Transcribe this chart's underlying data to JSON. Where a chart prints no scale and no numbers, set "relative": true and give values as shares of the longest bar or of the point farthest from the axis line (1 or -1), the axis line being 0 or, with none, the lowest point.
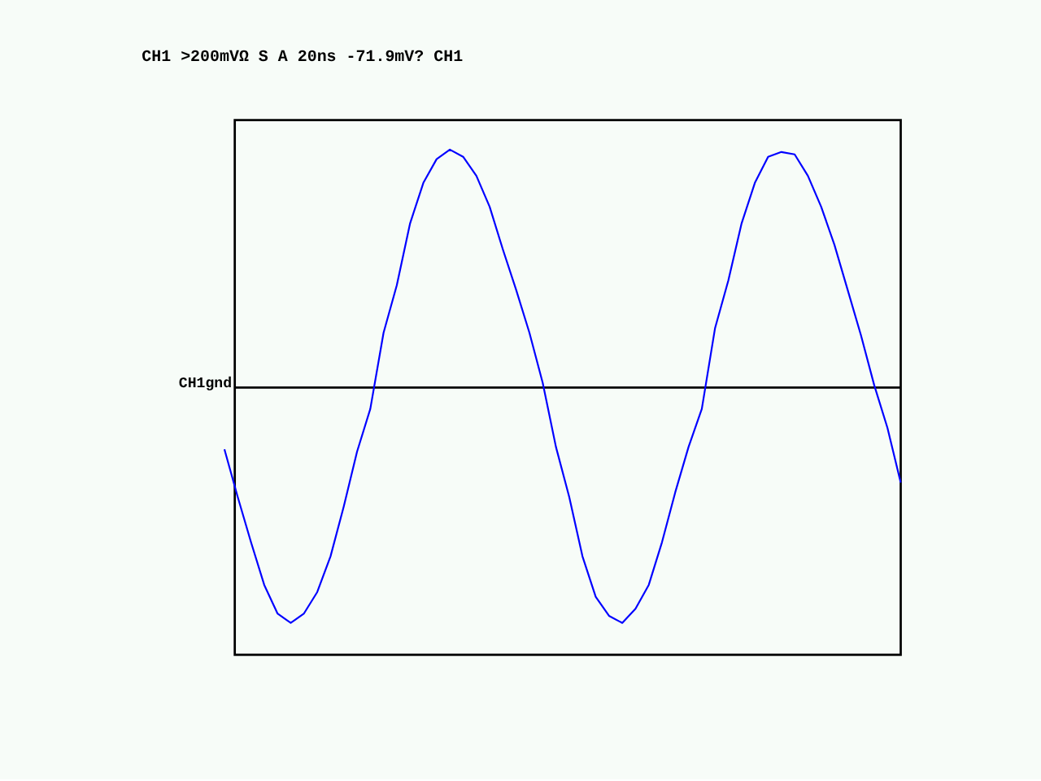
{
  "chart_data": {
    "type": "line",
    "relative": true,
    "title": "CH1 >200mVΩ S      A  20ns -71.9mV?  CH1",
    "annotations": [
      "CH1gnd"
    ],
    "categories": [
      null,
      null,
      null,
      null,
      null,
      null,
      null,
      null,
      null,
      null,
      null,
      null,
      null,
      null,
      null,
      null,
      null,
      null,
      null,
      null,
      null,
      null,
      null,
      null,
      null,
      null,
      null,
      null,
      null,
      null,
      null,
      null,
      null,
      null,
      null,
      null,
      null,
      null,
      null,
      null,
      null,
      null,
      null,
      null,
      null,
      null,
      null,
      null,
      null,
      null,
      null,
      null
    ],
    "series": [
      {
        "color": "#0000ff",
        "values": [
          -0.26,
          -0.46,
          -0.65,
          -0.83,
          -0.95,
          -0.99,
          -0.95,
          -0.86,
          -0.71,
          -0.5,
          -0.27,
          -0.09,
          0.23,
          0.43,
          0.69,
          0.86,
          0.96,
          1.0,
          0.97,
          0.89,
          0.76,
          0.58,
          0.41,
          0.23,
          0.02,
          -0.25,
          -0.46,
          -0.71,
          -0.88,
          -0.96,
          -0.99,
          -0.93,
          -0.83,
          -0.65,
          -0.44,
          -0.25,
          -0.09,
          0.25,
          0.45,
          0.69,
          0.86,
          0.97,
          0.99,
          0.98,
          0.89,
          0.76,
          0.6,
          0.41,
          0.22,
          0.01,
          -0.17,
          -0.4
        ]
      }
    ],
    "grid": false,
    "marker": "none",
    "line_style": "solid"
  }
}
